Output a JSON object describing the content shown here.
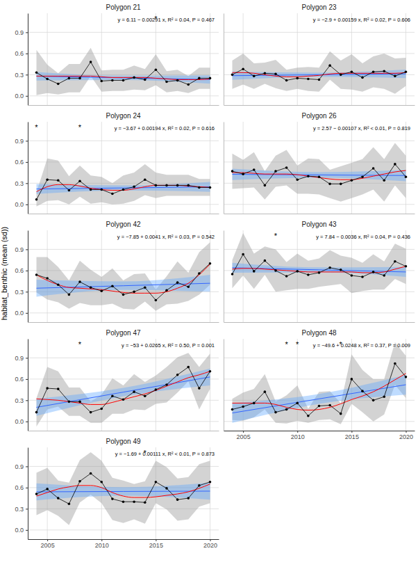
{
  "chart_data": {
    "type": "line",
    "y_label": "habitat_benthic (mean (sd))",
    "x": [
      2004,
      2005,
      2006,
      2007,
      2008,
      2009,
      2010,
      2011,
      2012,
      2013,
      2014,
      2015,
      2016,
      2017,
      2018,
      2019,
      2020
    ],
    "xlim": [
      2003.2,
      2020.8
    ],
    "xticks": [
      2005,
      2010,
      2015,
      2020
    ],
    "ylim": [
      -0.13,
      1.17
    ],
    "yticks": [
      {
        "value": 0,
        "label": "0.0"
      },
      0.3,
      0.6,
      0.9
    ],
    "grid": true,
    "panels": [
      {
        "title": "Polygon 21",
        "equation": "y = 6.11 − 0.00291 x, R² = 0.04, P = 0.467",
        "annotations": [
          {
            "text": "*",
            "x": 2015,
            "y": 1.1
          }
        ],
        "series": [
          {
            "type": "line",
            "color": "#000000",
            "marker": "circle",
            "values": [
              0.33,
              0.24,
              0.17,
              0.25,
              0.25,
              0.48,
              0.21,
              0.22,
              0.22,
              0.26,
              0.23,
              0.37,
              0.2,
              0.22,
              0.16,
              0.25,
              0.25
            ],
            "sd": [
              0.32,
              0.2,
              0.15,
              0.2,
              0.2,
              0.2,
              0.15,
              0.15,
              0.15,
              0.17,
              0.15,
              0.22,
              0.15,
              0.15,
              0.12,
              0.15,
              0.15
            ]
          },
          {
            "type": "line",
            "color": "#ff0000",
            "line_style": "smooth",
            "values": [
              0.28,
              0.28,
              0.28,
              0.28,
              0.28,
              0.28,
              0.27,
              0.26,
              0.26,
              0.26,
              0.26,
              0.25,
              0.24,
              0.23,
              0.23,
              0.23,
              0.24
            ]
          },
          {
            "type": "line",
            "color": "#3366ff",
            "x": [
              2004,
              2012,
              2020
            ],
            "values": [
              0.278,
              0.255,
              0.232
            ],
            "lower": [
              0.218,
              0.225,
              0.172
            ],
            "upper": [
              0.338,
              0.285,
              0.292
            ]
          }
        ]
      },
      {
        "title": "Polygon 23",
        "equation": "y = −2.9 + 0.00159 x, R² = 0.02, P = 0.606",
        "annotations": [],
        "series": [
          {
            "type": "line",
            "color": "#000000",
            "marker": "circle",
            "values": [
              0.3,
              0.38,
              0.28,
              0.32,
              0.31,
              0.22,
              0.25,
              0.24,
              0.23,
              0.43,
              0.3,
              0.34,
              0.26,
              0.34,
              0.35,
              0.28,
              0.34
            ],
            "sd": [
              0.2,
              0.22,
              0.18,
              0.15,
              0.2,
              0.15,
              0.15,
              0.17,
              0.17,
              0.2,
              0.2,
              0.25,
              0.2,
              0.22,
              0.25,
              0.25,
              0.2
            ]
          },
          {
            "type": "line",
            "color": "#ff0000",
            "line_style": "smooth",
            "values": [
              0.33,
              0.33,
              0.32,
              0.3,
              0.28,
              0.27,
              0.27,
              0.28,
              0.29,
              0.31,
              0.32,
              0.32,
              0.32,
              0.32,
              0.32,
              0.32,
              0.33
            ]
          },
          {
            "type": "line",
            "color": "#3366ff",
            "x": [
              2004,
              2012,
              2020
            ],
            "values": [
              0.286,
              0.299,
              0.312
            ],
            "lower": [
              0.226,
              0.269,
              0.252
            ],
            "upper": [
              0.346,
              0.329,
              0.372
            ]
          }
        ]
      },
      {
        "title": "Polygon 24",
        "equation": "y = −3.67 + 0.00194 x, R² = 0.02, P = 0.616",
        "annotations": [
          {
            "text": "*",
            "x": 2004,
            "y": 1.1
          },
          {
            "text": "*",
            "x": 2008,
            "y": 1.1
          }
        ],
        "series": [
          {
            "type": "line",
            "color": "#000000",
            "marker": "circle",
            "values": [
              0.07,
              0.35,
              0.34,
              0.2,
              0.33,
              0.21,
              0.21,
              0.15,
              0.21,
              0.25,
              0.35,
              0.27,
              0.27,
              0.27,
              0.27,
              0.24,
              0.24
            ],
            "sd": [
              0.1,
              0.3,
              0.28,
              0.2,
              0.22,
              0.2,
              0.18,
              0.15,
              0.2,
              0.2,
              0.22,
              0.18,
              0.15,
              0.15,
              0.15,
              0.12,
              0.12
            ]
          },
          {
            "type": "line",
            "color": "#ff0000",
            "line_style": "smooth",
            "values": [
              0.18,
              0.25,
              0.28,
              0.28,
              0.26,
              0.23,
              0.21,
              0.2,
              0.2,
              0.22,
              0.25,
              0.27,
              0.27,
              0.27,
              0.26,
              0.25,
              0.24
            ]
          },
          {
            "type": "line",
            "color": "#3366ff",
            "x": [
              2004,
              2012,
              2020
            ],
            "values": [
              0.218,
              0.233,
              0.249
            ],
            "lower": [
              0.148,
              0.198,
              0.179
            ],
            "upper": [
              0.288,
              0.268,
              0.319
            ]
          }
        ]
      },
      {
        "title": "Polygon 26",
        "equation": "y = 2.57 − 0.00107 x, R² < 0.01, P = 0.819",
        "annotations": [],
        "series": [
          {
            "type": "line",
            "color": "#000000",
            "marker": "circle",
            "values": [
              0.47,
              0.43,
              0.49,
              0.27,
              0.47,
              0.52,
              0.35,
              0.4,
              0.39,
              0.29,
              0.29,
              0.34,
              0.39,
              0.51,
              0.34,
              0.57,
              0.39
            ],
            "sd": [
              0.25,
              0.2,
              0.25,
              0.2,
              0.22,
              0.25,
              0.2,
              0.25,
              0.25,
              0.2,
              0.25,
              0.25,
              0.25,
              0.3,
              0.3,
              0.3,
              0.3
            ]
          },
          {
            "type": "line",
            "color": "#ff0000",
            "line_style": "smooth",
            "values": [
              0.45,
              0.45,
              0.44,
              0.43,
              0.43,
              0.43,
              0.42,
              0.4,
              0.38,
              0.36,
              0.35,
              0.35,
              0.37,
              0.4,
              0.43,
              0.46,
              0.48
            ]
          },
          {
            "type": "line",
            "color": "#3366ff",
            "x": [
              2004,
              2012,
              2020
            ],
            "values": [
              0.426,
              0.417,
              0.409
            ],
            "lower": [
              0.346,
              0.377,
              0.329
            ],
            "upper": [
              0.506,
              0.457,
              0.489
            ]
          }
        ]
      },
      {
        "title": "Polygon 42",
        "equation": "y = −7.85 + 0.0041 x, R² = 0.03, P = 0.542",
        "annotations": [],
        "series": [
          {
            "type": "line",
            "color": "#000000",
            "marker": "circle",
            "values": [
              0.54,
              0.49,
              0.4,
              0.26,
              0.44,
              0.36,
              0.31,
              0.38,
              0.26,
              0.3,
              0.36,
              0.18,
              0.32,
              0.43,
              0.37,
              0.56,
              0.7
            ],
            "sd": [
              0.25,
              0.3,
              0.25,
              0.2,
              0.3,
              0.25,
              0.2,
              0.25,
              0.2,
              0.25,
              0.2,
              0.15,
              0.2,
              0.3,
              0.2,
              0.3,
              0.3
            ]
          },
          {
            "type": "line",
            "color": "#ff0000",
            "line_style": "smooth",
            "values": [
              0.54,
              0.46,
              0.4,
              0.36,
              0.35,
              0.34,
              0.33,
              0.31,
              0.29,
              0.28,
              0.28,
              0.28,
              0.3,
              0.35,
              0.42,
              0.54,
              0.69
            ]
          },
          {
            "type": "line",
            "color": "#3366ff",
            "x": [
              2004,
              2012,
              2020
            ],
            "values": [
              0.35,
              0.385,
              0.42
            ],
            "lower": [
              0.23,
              0.325,
              0.3
            ],
            "upper": [
              0.47,
              0.445,
              0.54
            ]
          }
        ]
      },
      {
        "title": "Polygon 43",
        "equation": "y = 7.84 − 0.0036 x, R² = 0.04, P = 0.436",
        "annotations": [
          {
            "text": "*",
            "x": 2008,
            "y": 1.1
          }
        ],
        "series": [
          {
            "type": "line",
            "color": "#000000",
            "marker": "circle",
            "values": [
              0.55,
              0.83,
              0.59,
              0.74,
              0.6,
              0.52,
              0.59,
              0.54,
              0.57,
              0.64,
              0.61,
              0.53,
              0.51,
              0.58,
              0.53,
              0.73,
              0.66
            ],
            "sd": [
              0.2,
              0.3,
              0.25,
              0.2,
              0.3,
              0.2,
              0.25,
              0.2,
              0.2,
              0.25,
              0.2,
              0.25,
              0.2,
              0.25,
              0.2,
              0.25,
              0.25
            ]
          },
          {
            "type": "line",
            "color": "#ff0000",
            "line_style": "smooth",
            "values": [
              0.62,
              0.63,
              0.63,
              0.62,
              0.61,
              0.6,
              0.59,
              0.58,
              0.58,
              0.58,
              0.58,
              0.58,
              0.57,
              0.57,
              0.58,
              0.62,
              0.66
            ]
          },
          {
            "type": "line",
            "color": "#3366ff",
            "x": [
              2004,
              2012,
              2020
            ],
            "values": [
              0.64,
              0.61,
              0.58
            ],
            "lower": [
              0.57,
              0.575,
              0.51
            ],
            "upper": [
              0.71,
              0.645,
              0.65
            ]
          }
        ]
      },
      {
        "title": "Polygon 47",
        "equation": "y = −53 + 0.0265 x, R² = 0.50, P = 0.001",
        "annotations": [
          {
            "text": "*",
            "x": 2008,
            "y": 1.1
          }
        ],
        "series": [
          {
            "type": "line",
            "color": "#000000",
            "marker": "circle",
            "values": [
              0.13,
              0.47,
              0.46,
              0.28,
              0.28,
              0.13,
              0.18,
              0.36,
              0.31,
              0.42,
              0.36,
              0.45,
              0.52,
              0.66,
              0.77,
              0.47,
              0.71
            ],
            "sd": [
              0.2,
              0.3,
              0.25,
              0.2,
              0.2,
              0.15,
              0.2,
              0.25,
              0.2,
              0.25,
              0.2,
              0.2,
              0.25,
              0.25,
              0.2,
              0.3,
              0.25
            ]
          },
          {
            "type": "line",
            "color": "#ff0000",
            "line_style": "smooth",
            "values": [
              0.32,
              0.31,
              0.3,
              0.28,
              0.26,
              0.24,
              0.24,
              0.27,
              0.31,
              0.35,
              0.39,
              0.44,
              0.5,
              0.56,
              0.62,
              0.66,
              0.71
            ]
          },
          {
            "type": "line",
            "color": "#3366ff",
            "x": [
              2004,
              2012,
              2020
            ],
            "values": [
              0.2,
              0.415,
              0.63
            ],
            "lower": [
              0.08,
              0.355,
              0.51
            ],
            "upper": [
              0.32,
              0.475,
              0.75
            ]
          }
        ]
      },
      {
        "title": "Polygon 48",
        "equation": "y = −49.6 + 0.0248 x, R² = 0.37, P = 0.009",
        "annotations": [
          {
            "text": "*",
            "x": 2009,
            "y": 1.1
          },
          {
            "text": "*",
            "x": 2010,
            "y": 1.1
          },
          {
            "text": "*",
            "x": 2014,
            "y": 1.1
          }
        ],
        "series": [
          {
            "type": "line",
            "color": "#000000",
            "marker": "circle",
            "values": [
              0.17,
              0.21,
              0.26,
              0.42,
              0.13,
              0.17,
              0.26,
              0.08,
              0.22,
              0.23,
              0.11,
              0.6,
              0.43,
              0.3,
              0.35,
              0.82,
              0.63
            ],
            "sd": [
              0.15,
              0.2,
              0.2,
              0.25,
              0.15,
              0.2,
              0.25,
              0.1,
              0.2,
              0.2,
              0.15,
              0.35,
              0.3,
              0.3,
              0.25,
              0.3,
              0.3
            ]
          },
          {
            "type": "line",
            "color": "#ff0000",
            "line_style": "smooth",
            "values": [
              0.26,
              0.26,
              0.26,
              0.26,
              0.24,
              0.2,
              0.17,
              0.16,
              0.17,
              0.2,
              0.25,
              0.31,
              0.36,
              0.42,
              0.5,
              0.59,
              0.68
            ]
          },
          {
            "type": "line",
            "color": "#3366ff",
            "x": [
              2004,
              2012,
              2020
            ],
            "values": [
              0.12,
              0.32,
              0.52
            ],
            "lower": [
              -0.02,
              0.25,
              0.38
            ],
            "upper": [
              0.26,
              0.39,
              0.66
            ]
          }
        ]
      },
      {
        "title": "Polygon 49",
        "equation": "y = −1.69 + 0.00111 x, R² < 0.01, P = 0.873",
        "annotations": [
          {
            "text": "*",
            "x": 2014,
            "y": 1.1
          }
        ],
        "series": [
          {
            "type": "line",
            "color": "#000000",
            "marker": "circle",
            "values": [
              0.51,
              0.58,
              0.45,
              0.37,
              0.69,
              0.8,
              0.68,
              0.44,
              0.4,
              0.4,
              0.39,
              0.68,
              0.59,
              0.43,
              0.45,
              0.63,
              0.68
            ],
            "sd": [
              0.3,
              0.3,
              0.25,
              0.3,
              0.3,
              0.3,
              0.3,
              0.3,
              0.3,
              0.25,
              0.3,
              0.3,
              0.3,
              0.3,
              0.3,
              0.3,
              0.3
            ]
          },
          {
            "type": "line",
            "color": "#ff0000",
            "line_style": "smooth",
            "values": [
              0.48,
              0.53,
              0.58,
              0.61,
              0.63,
              0.63,
              0.6,
              0.53,
              0.48,
              0.46,
              0.46,
              0.47,
              0.49,
              0.51,
              0.54,
              0.59,
              0.65
            ]
          },
          {
            "type": "line",
            "color": "#3366ff",
            "x": [
              2004,
              2012,
              2020
            ],
            "values": [
              0.54,
              0.545,
              0.55
            ],
            "lower": [
              0.42,
              0.485,
              0.43
            ],
            "upper": [
              0.66,
              0.605,
              0.67
            ]
          }
        ]
      }
    ]
  }
}
